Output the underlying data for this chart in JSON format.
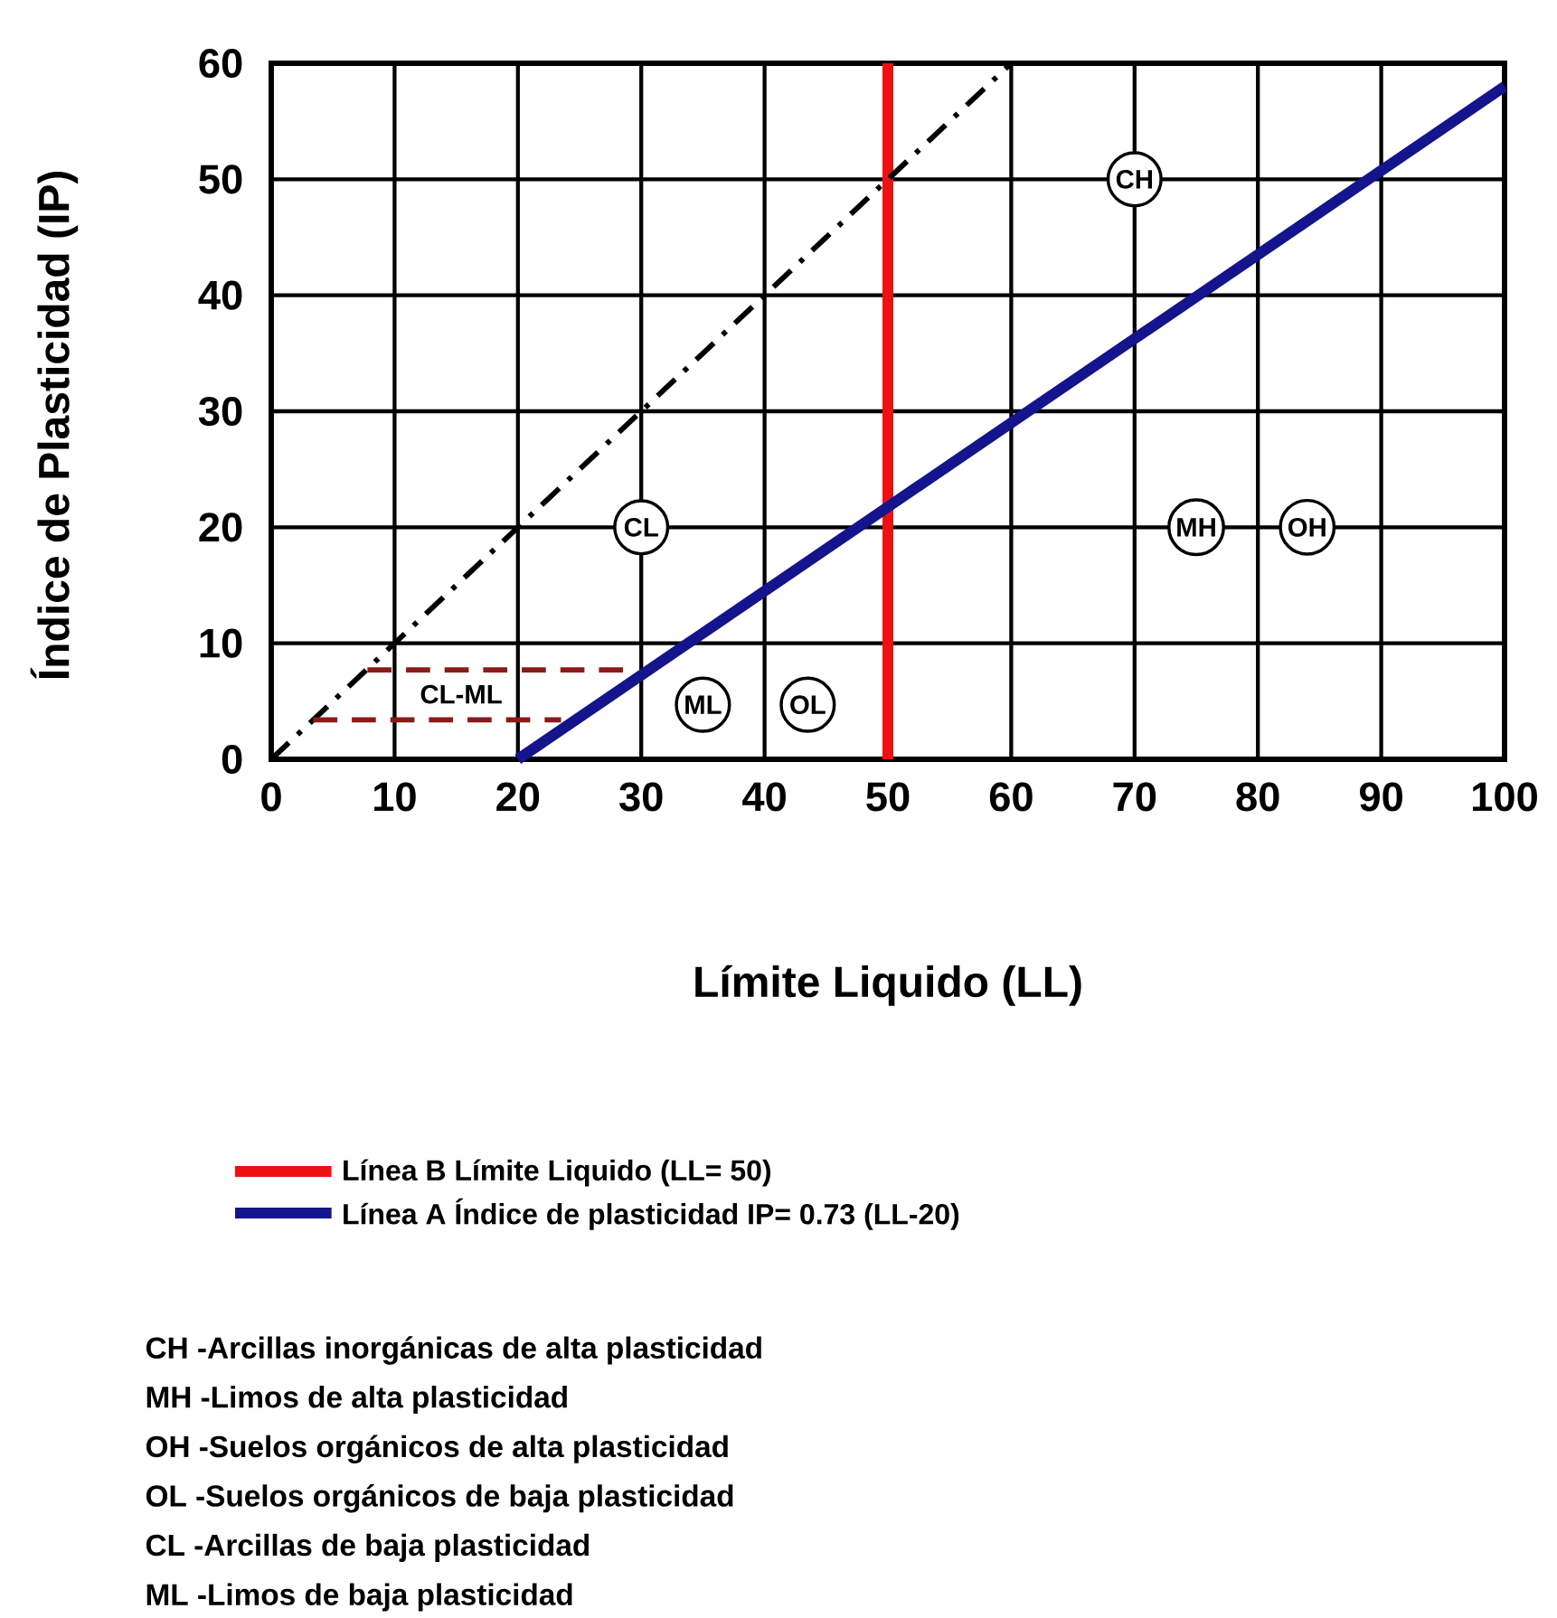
{
  "chart_data": {
    "type": "line",
    "xlabel": "Límite Liquido (LL)",
    "ylabel": "Índice de Plasticidad (IP)",
    "xlim": [
      0,
      100
    ],
    "ylim": [
      0,
      60
    ],
    "xticks": [
      0,
      10,
      20,
      30,
      40,
      50,
      60,
      70,
      80,
      90,
      100
    ],
    "yticks": [
      0,
      10,
      20,
      30,
      40,
      50,
      60
    ],
    "grid": true,
    "legend": "bottom",
    "series": [
      {
        "name": "Línea B  Límite Liquido (LL= 50)",
        "color": "#ee1111",
        "x": [
          50,
          50
        ],
        "values": [
          0,
          60
        ],
        "line_style": "solid"
      },
      {
        "name": "Línea A   Índice de plasticidad IP= 0.73 (LL-20)",
        "color": "#14148c",
        "x": [
          20,
          100
        ],
        "values": [
          0,
          58
        ],
        "line_style": "solid"
      },
      {
        "color": "#000000",
        "x": [
          0,
          60
        ],
        "values": [
          0,
          60
        ],
        "line_style": "dashdot"
      },
      {
        "color": "#8b1a1a",
        "x": [
          7.8,
          29
        ],
        "values": [
          7.7,
          7.7
        ],
        "line_style": "dashed"
      },
      {
        "color": "#8b1a1a",
        "x": [
          3.4,
          23.5
        ],
        "values": [
          3.4,
          3.4
        ],
        "line_style": "dashed"
      }
    ],
    "annotations": [
      {
        "text": "CH",
        "x": 70,
        "y": 50
      },
      {
        "text": "CL",
        "x": 30,
        "y": 20
      },
      {
        "text": "MH",
        "x": 75,
        "y": 20
      },
      {
        "text": "OH",
        "x": 84,
        "y": 20
      },
      {
        "text": "ML",
        "x": 35,
        "y": 4.7
      },
      {
        "text": "OL",
        "x": 43.5,
        "y": 4.7
      },
      "CL-ML",
      "CH -Arcillas inorgánicas de alta plasticidad",
      "MH -Limos de alta plasticidad",
      "OH -Suelos orgánicos de alta plasticidad",
      "OL -Suelos orgánicos de baja plasticidad",
      "CL -Arcillas de baja plasticidad",
      "ML -Limos de baja plasticidad"
    ]
  }
}
